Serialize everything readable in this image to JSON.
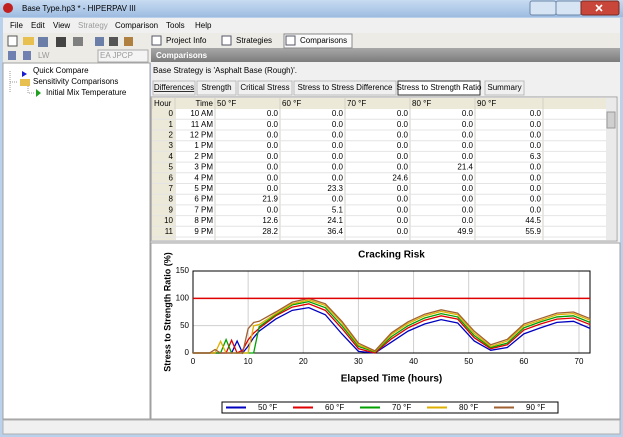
{
  "window": {
    "title": "Base Type.hp3 * - HIPERPAV III"
  },
  "menu": [
    "File",
    "Edit",
    "View",
    "Strategy",
    "Comparison",
    "Tools",
    "Help"
  ],
  "toolbar": {
    "label": "LW",
    "combo": "EA JPCP",
    "tabs": [
      "Project Info",
      "Strategies",
      "Comparisons"
    ]
  },
  "tree": [
    "Quick Compare",
    "Sensitivity Comparisons",
    "Initial Mix Temperature"
  ],
  "panel": {
    "header": "Comparisons",
    "strategy": "Base Strategy is 'Asphalt Base (Rough)'.",
    "tabs": [
      "Differences",
      "Strength",
      "Critical Stress",
      "Stress to Stress Difference",
      "Stress to Strength Ratio",
      "Summary"
    ]
  },
  "table": {
    "columns": [
      "Hour",
      "Time",
      "50 °F",
      "60 °F",
      "70 °F",
      "80 °F",
      "90 °F"
    ],
    "rows": [
      [
        "0",
        "10 AM",
        "0.0",
        "0.0",
        "0.0",
        "0.0",
        "0.0"
      ],
      [
        "1",
        "11 AM",
        "0.0",
        "0.0",
        "0.0",
        "0.0",
        "0.0"
      ],
      [
        "2",
        "12 PM",
        "0.0",
        "0.0",
        "0.0",
        "0.0",
        "0.0"
      ],
      [
        "3",
        "1 PM",
        "0.0",
        "0.0",
        "0.0",
        "0.0",
        "0.0"
      ],
      [
        "4",
        "2 PM",
        "0.0",
        "0.0",
        "0.0",
        "0.0",
        "6.3"
      ],
      [
        "5",
        "3 PM",
        "0.0",
        "0.0",
        "0.0",
        "21.4",
        "0.0"
      ],
      [
        "6",
        "4 PM",
        "0.0",
        "0.0",
        "24.6",
        "0.0",
        "0.0"
      ],
      [
        "7",
        "5 PM",
        "0.0",
        "23.3",
        "0.0",
        "0.0",
        "0.0"
      ],
      [
        "8",
        "6 PM",
        "21.9",
        "0.0",
        "0.0",
        "0.0",
        "0.0"
      ],
      [
        "9",
        "7 PM",
        "0.0",
        "5.1",
        "0.0",
        "0.0",
        "0.0"
      ],
      [
        "10",
        "8 PM",
        "12.6",
        "24.1",
        "0.0",
        "0.0",
        "44.5"
      ],
      [
        "11",
        "9 PM",
        "28.2",
        "36.4",
        "0.0",
        "49.9",
        "55.9"
      ]
    ]
  },
  "chart_data": {
    "type": "line",
    "title": "Cracking Risk",
    "x_label": "Elapsed Time (hours)",
    "y_label": "Stress to Strength Ratio (%)",
    "xlim": [
      0,
      72
    ],
    "xticks": [
      0,
      10,
      20,
      30,
      40,
      50,
      60,
      70
    ],
    "ylim": [
      0,
      150
    ],
    "yticks": [
      0,
      50,
      100,
      150
    ],
    "limit": 100,
    "limit_color": "#e00000",
    "x": [
      0,
      1,
      2,
      3,
      4,
      5,
      6,
      7,
      8,
      9,
      10,
      11,
      12,
      15,
      18,
      21,
      24,
      27,
      30,
      33,
      36,
      39,
      42,
      45,
      48,
      51,
      54,
      57,
      60,
      63,
      66,
      69,
      72
    ],
    "series": [
      {
        "name": "50 °F",
        "color": "#0000c0",
        "values": [
          0,
          0,
          0,
          0,
          0,
          0,
          0,
          0,
          21.9,
          0,
          12.6,
          28.2,
          40,
          62,
          78,
          83,
          70,
          35,
          3,
          0,
          20,
          40,
          53,
          61,
          55,
          22,
          5,
          10,
          35,
          46,
          56,
          58,
          45
        ]
      },
      {
        "name": "60 °F",
        "color": "#e00000",
        "values": [
          0,
          0,
          0,
          0,
          0,
          0,
          0,
          23.3,
          0,
          5.1,
          24.1,
          36.4,
          45,
          68,
          84,
          90,
          78,
          45,
          8,
          0,
          26,
          46,
          60,
          68,
          62,
          28,
          8,
          15,
          42,
          53,
          62,
          64,
          52
        ]
      },
      {
        "name": "70 °F",
        "color": "#00a000",
        "values": [
          0,
          0,
          0,
          0,
          0,
          0,
          24.6,
          0,
          0,
          0,
          0,
          0,
          48,
          70,
          88,
          94,
          83,
          50,
          12,
          2,
          30,
          50,
          64,
          72,
          66,
          32,
          10,
          18,
          46,
          57,
          66,
          68,
          56
        ]
      },
      {
        "name": "80 °F",
        "color": "#e0b000",
        "values": [
          0,
          0,
          0,
          0,
          0,
          21.4,
          0,
          0,
          0,
          0,
          0,
          49.9,
          52,
          72,
          90,
          97,
          87,
          55,
          15,
          3,
          34,
          54,
          68,
          76,
          70,
          36,
          12,
          22,
          50,
          60,
          70,
          72,
          60
        ]
      },
      {
        "name": "90 °F",
        "color": "#a06030",
        "values": [
          0,
          0,
          0,
          0,
          6.3,
          0,
          0,
          0,
          0,
          0,
          44.5,
          55.9,
          58,
          75,
          93,
          100,
          90,
          58,
          18,
          4,
          37,
          57,
          71,
          79,
          73,
          40,
          15,
          25,
          53,
          63,
          73,
          75,
          63
        ]
      }
    ]
  }
}
